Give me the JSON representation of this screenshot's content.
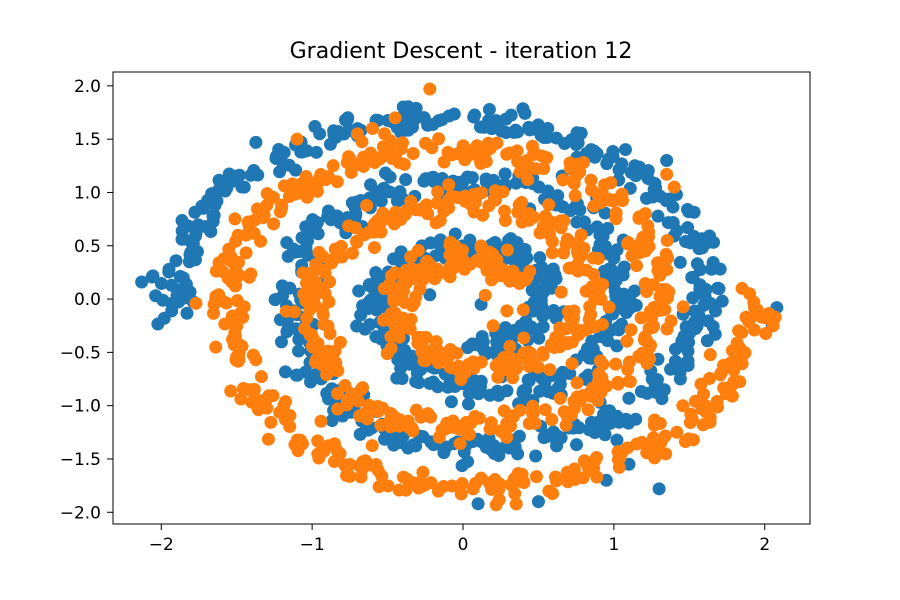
{
  "chart_data": {
    "type": "scatter",
    "title": "Gradient Descent - iteration 12",
    "xlabel": "",
    "ylabel": "",
    "xlim": [
      -2.32,
      2.3
    ],
    "ylim": [
      -2.11,
      2.13
    ],
    "grid": false,
    "x_ticks": [
      -2,
      -1,
      0,
      1,
      2
    ],
    "x_tick_labels": [
      "−2",
      "−1",
      "0",
      "1",
      "2"
    ],
    "y_ticks": [
      -2.0,
      -1.5,
      -1.0,
      -0.5,
      0.0,
      0.5,
      1.0,
      1.5,
      2.0
    ],
    "y_tick_labels": [
      "−2.0",
      "−1.5",
      "−1.0",
      "−0.5",
      "0.0",
      "0.5",
      "1.0",
      "1.5",
      "2.0"
    ],
    "colors": {
      "series_0": "#1f77b4",
      "series_1": "#ff7f0e",
      "axes": "#000000",
      "background": "#ffffff"
    },
    "series": [
      {
        "label_index": 0,
        "color": "#1f77b4",
        "arm_points": [
          [
            0.05,
            -0.4
          ],
          [
            0.25,
            -0.42
          ],
          [
            0.42,
            -0.3
          ],
          [
            0.52,
            -0.08
          ],
          [
            0.52,
            0.15
          ],
          [
            0.4,
            0.38
          ],
          [
            0.15,
            0.48
          ],
          [
            -0.15,
            0.45
          ],
          [
            -0.4,
            0.32
          ],
          [
            -0.55,
            0.1
          ],
          [
            -0.58,
            -0.15
          ],
          [
            -0.48,
            -0.45
          ],
          [
            -0.28,
            -0.7
          ],
          [
            0.0,
            -0.85
          ],
          [
            0.3,
            -0.88
          ],
          [
            0.6,
            -0.78
          ],
          [
            0.85,
            -0.55
          ],
          [
            1.0,
            -0.25
          ],
          [
            1.05,
            0.1
          ],
          [
            0.98,
            0.45
          ],
          [
            0.78,
            0.78
          ],
          [
            0.5,
            1.0
          ],
          [
            0.15,
            1.12
          ],
          [
            -0.2,
            1.1
          ],
          [
            -0.55,
            0.98
          ],
          [
            -0.85,
            0.75
          ],
          [
            -1.05,
            0.45
          ],
          [
            -1.15,
            0.1
          ],
          [
            -1.12,
            -0.3
          ],
          [
            -1.0,
            -0.7
          ],
          [
            -0.8,
            -1.05
          ],
          [
            -0.5,
            -1.25
          ],
          [
            -0.15,
            -1.35
          ],
          [
            0.2,
            -1.38
          ],
          [
            0.55,
            -1.32
          ],
          [
            0.9,
            -1.18
          ],
          [
            1.2,
            -0.95
          ],
          [
            1.42,
            -0.65
          ],
          [
            1.55,
            -0.3
          ],
          [
            1.6,
            0.1
          ],
          [
            1.55,
            0.5
          ],
          [
            1.38,
            0.9
          ],
          [
            1.12,
            1.22
          ],
          [
            0.8,
            1.45
          ],
          [
            0.45,
            1.6
          ],
          [
            0.1,
            1.68
          ],
          [
            -0.3,
            1.7
          ],
          [
            -0.7,
            1.62
          ],
          [
            -1.05,
            1.45
          ],
          [
            -1.4,
            1.2
          ],
          [
            -1.68,
            0.88
          ],
          [
            -1.85,
            0.5
          ],
          [
            -1.92,
            0.15
          ],
          [
            -1.93,
            -0.12
          ]
        ],
        "outliers": [
          [
            -2.13,
            0.16
          ],
          [
            -1.98,
            -0.18
          ],
          [
            0.95,
            -1.7
          ],
          [
            1.3,
            -1.78
          ],
          [
            0.5,
            -1.9
          ],
          [
            2.05,
            -0.25
          ],
          [
            2.08,
            -0.08
          ],
          [
            0.1,
            -1.92
          ],
          [
            -0.22,
            0.04
          ],
          [
            0.12,
            -0.05
          ],
          [
            -1.45,
            1.05
          ],
          [
            1.35,
            1.3
          ],
          [
            0.75,
            1.45
          ],
          [
            -0.95,
            1.55
          ],
          [
            1.1,
            -1.55
          ]
        ]
      },
      {
        "label_index": 1,
        "color": "#ff7f0e",
        "arm_points": [
          [
            0.35,
            0.15
          ],
          [
            0.25,
            0.32
          ],
          [
            0.05,
            0.4
          ],
          [
            -0.2,
            0.35
          ],
          [
            -0.38,
            0.18
          ],
          [
            -0.45,
            -0.05
          ],
          [
            -0.4,
            -0.3
          ],
          [
            -0.22,
            -0.52
          ],
          [
            0.05,
            -0.62
          ],
          [
            0.35,
            -0.6
          ],
          [
            0.62,
            -0.45
          ],
          [
            0.8,
            -0.2
          ],
          [
            0.85,
            0.1
          ],
          [
            0.78,
            0.42
          ],
          [
            0.58,
            0.7
          ],
          [
            0.3,
            0.85
          ],
          [
            0.0,
            0.9
          ],
          [
            -0.32,
            0.85
          ],
          [
            -0.62,
            0.68
          ],
          [
            -0.85,
            0.42
          ],
          [
            -0.98,
            0.1
          ],
          [
            -1.02,
            -0.25
          ],
          [
            -0.95,
            -0.6
          ],
          [
            -0.75,
            -0.95
          ],
          [
            -0.45,
            -1.15
          ],
          [
            -0.1,
            -1.22
          ],
          [
            0.25,
            -1.2
          ],
          [
            0.6,
            -1.08
          ],
          [
            0.9,
            -0.88
          ],
          [
            1.12,
            -0.6
          ],
          [
            1.25,
            -0.28
          ],
          [
            1.3,
            0.08
          ],
          [
            1.25,
            0.45
          ],
          [
            1.08,
            0.82
          ],
          [
            0.82,
            1.12
          ],
          [
            0.5,
            1.3
          ],
          [
            0.15,
            1.4
          ],
          [
            -0.2,
            1.42
          ],
          [
            -0.55,
            1.35
          ],
          [
            -0.9,
            1.2
          ],
          [
            -1.2,
            0.95
          ],
          [
            -1.42,
            0.62
          ],
          [
            -1.52,
            0.28
          ],
          [
            -1.55,
            -0.1
          ],
          [
            -1.5,
            -0.5
          ],
          [
            -1.35,
            -0.9
          ],
          [
            -1.12,
            -1.25
          ],
          [
            -0.82,
            -1.52
          ],
          [
            -0.45,
            -1.68
          ],
          [
            -0.05,
            -1.75
          ],
          [
            0.35,
            -1.75
          ],
          [
            0.75,
            -1.65
          ],
          [
            1.1,
            -1.48
          ],
          [
            1.4,
            -1.25
          ],
          [
            1.65,
            -0.95
          ],
          [
            1.82,
            -0.62
          ],
          [
            1.9,
            -0.3
          ],
          [
            1.95,
            -0.05
          ]
        ],
        "outliers": [
          [
            -0.22,
            1.97
          ],
          [
            -1.77,
            -0.04
          ],
          [
            0.22,
            -1.93
          ],
          [
            1.35,
            1.17
          ],
          [
            1.4,
            1.05
          ],
          [
            -0.7,
            1.55
          ],
          [
            -0.6,
            1.6
          ],
          [
            -0.45,
            1.7
          ],
          [
            -1.1,
            1.5
          ],
          [
            -0.35,
            -0.28
          ],
          [
            0.2,
            -0.25
          ],
          [
            0.4,
            -0.1
          ],
          [
            1.9,
            0.05
          ],
          [
            1.85,
            0.1
          ]
        ]
      }
    ]
  }
}
